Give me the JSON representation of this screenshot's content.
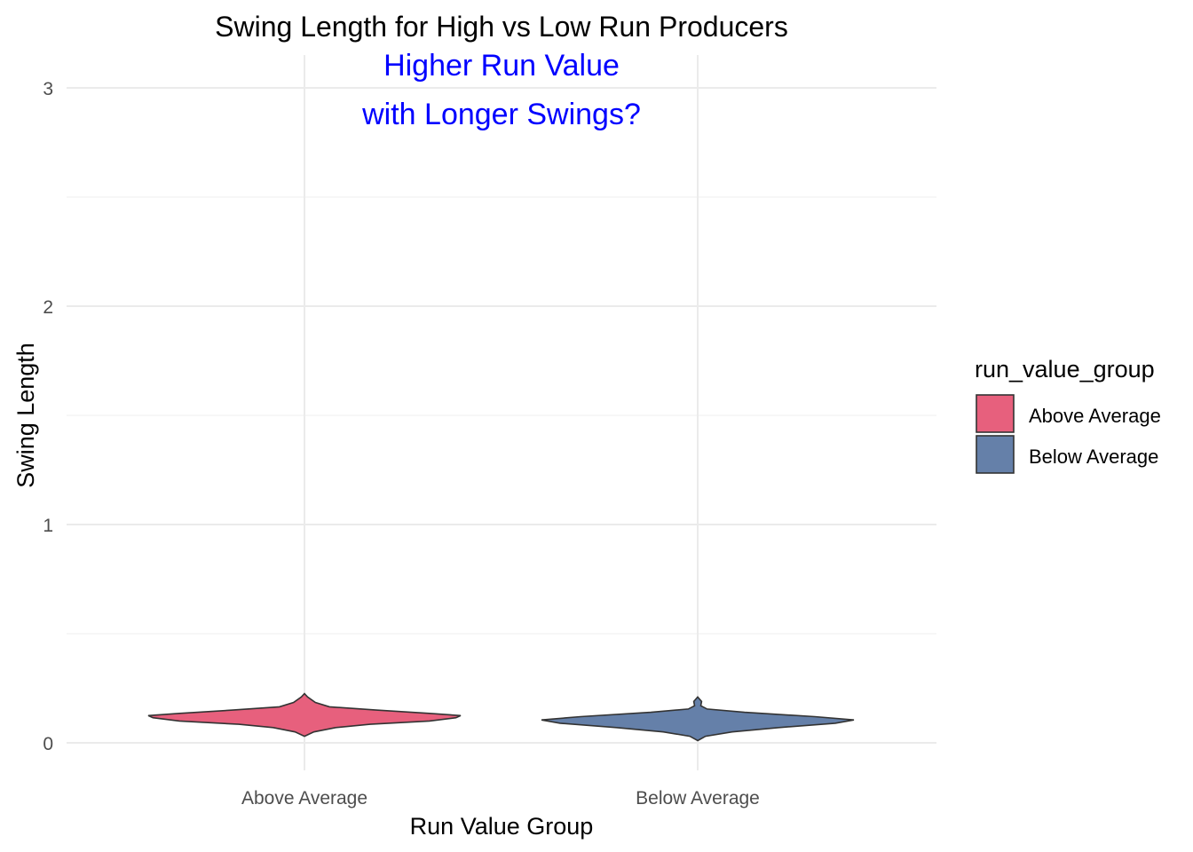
{
  "chart_data": {
    "type": "violin",
    "title": "Swing Length for High vs Low Run Producers",
    "xlabel": "Run Value Group",
    "ylabel": "Swing Length",
    "categories": [
      "Above Average",
      "Below Average"
    ],
    "ylim": [
      -0.12,
      3.15
    ],
    "yticks": [
      0,
      1,
      2,
      3
    ],
    "grid": true,
    "annotation": {
      "lines": [
        "Higher Run Value",
        "with Longer Swings?"
      ],
      "color": "#0000ff"
    },
    "legend": {
      "title": "run_value_group",
      "placement": "right",
      "entries": [
        {
          "label": "Above Average",
          "color": "#e7607d"
        },
        {
          "label": "Below Average",
          "color": "#6580a9"
        }
      ]
    },
    "series": [
      {
        "name": "Above Average",
        "color": "#e7607d",
        "density_profile": [
          {
            "y": 0.03,
            "w": 0.0
          },
          {
            "y": 0.05,
            "w": 0.06
          },
          {
            "y": 0.07,
            "w": 0.2
          },
          {
            "y": 0.085,
            "w": 0.42
          },
          {
            "y": 0.1,
            "w": 0.8
          },
          {
            "y": 0.115,
            "w": 0.97
          },
          {
            "y": 0.125,
            "w": 1.0
          },
          {
            "y": 0.135,
            "w": 0.8
          },
          {
            "y": 0.15,
            "w": 0.46
          },
          {
            "y": 0.165,
            "w": 0.16
          },
          {
            "y": 0.185,
            "w": 0.07
          },
          {
            "y": 0.21,
            "w": 0.02
          },
          {
            "y": 0.225,
            "w": 0.0
          }
        ]
      },
      {
        "name": "Below Average",
        "color": "#6580a9",
        "density_profile": [
          {
            "y": 0.01,
            "w": 0.0
          },
          {
            "y": 0.03,
            "w": 0.05
          },
          {
            "y": 0.05,
            "w": 0.22
          },
          {
            "y": 0.07,
            "w": 0.52
          },
          {
            "y": 0.09,
            "w": 0.88
          },
          {
            "y": 0.105,
            "w": 1.0
          },
          {
            "y": 0.12,
            "w": 0.75
          },
          {
            "y": 0.14,
            "w": 0.3
          },
          {
            "y": 0.155,
            "w": 0.06
          },
          {
            "y": 0.17,
            "w": 0.02
          },
          {
            "y": 0.19,
            "w": 0.025
          },
          {
            "y": 0.21,
            "w": 0.0
          }
        ]
      }
    ]
  }
}
